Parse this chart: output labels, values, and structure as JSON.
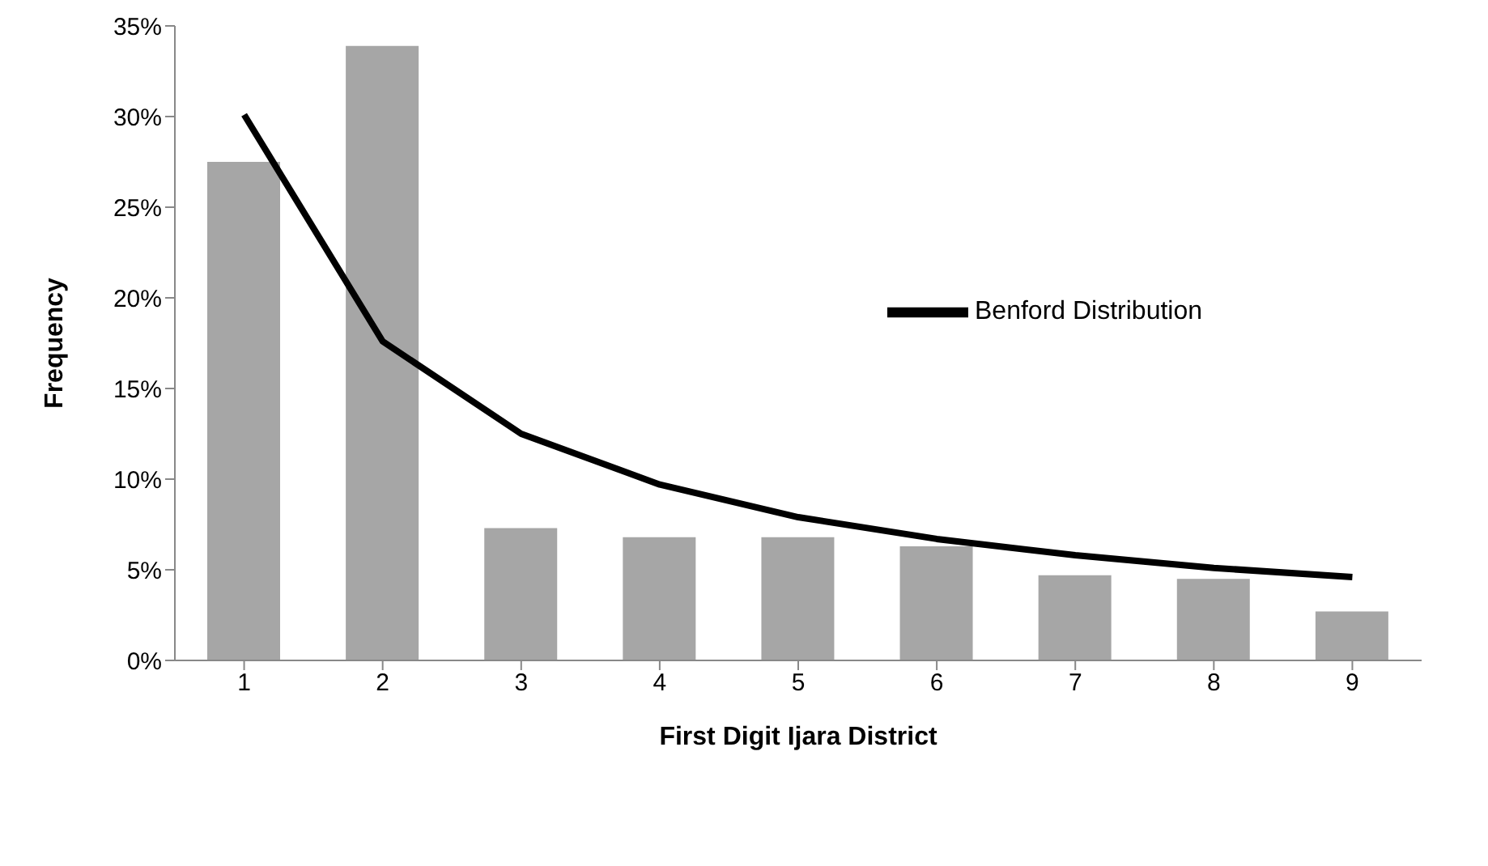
{
  "chart_data": {
    "type": "bar",
    "xlabel": "First Digit Ijara District",
    "ylabel": "Frequency",
    "categories": [
      "1",
      "2",
      "3",
      "4",
      "5",
      "6",
      "7",
      "8",
      "9"
    ],
    "series": [
      {
        "color": "#a6a6a6",
        "values": [
          27.5,
          33.9,
          7.3,
          6.8,
          6.8,
          6.3,
          4.7,
          4.5,
          2.7
        ]
      },
      {
        "type": "line",
        "name": "Benford Distribution",
        "color": "#000000",
        "values": [
          30.1,
          17.6,
          12.5,
          9.7,
          7.9,
          6.7,
          5.8,
          5.1,
          4.6
        ]
      }
    ],
    "ylim": [
      0,
      35
    ],
    "yticks": [
      {
        "value": 0,
        "label": "0%"
      },
      {
        "value": 5,
        "label": "5%"
      },
      {
        "value": 10,
        "label": "10%"
      },
      {
        "value": 15,
        "label": "15%"
      },
      {
        "value": 20,
        "label": "20%"
      },
      {
        "value": 25,
        "label": "25%"
      },
      {
        "value": 30,
        "label": "30%"
      },
      {
        "value": 35,
        "label": "35%"
      }
    ],
    "grid": false,
    "legend": "top right",
    "marker": "none",
    "line_style": "solid"
  }
}
